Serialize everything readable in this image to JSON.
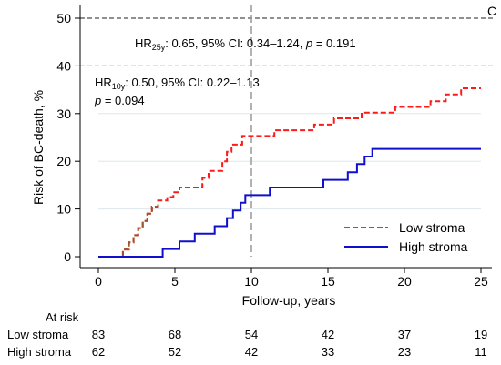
{
  "chart_data": {
    "type": "line",
    "panel_letter": "C",
    "xlabel": "Follow-up, years",
    "ylabel": "Risk of BC-death, %",
    "xlim": [
      0,
      25
    ],
    "ylim": [
      0,
      50
    ],
    "x_ticks": [
      0,
      5,
      10,
      15,
      20,
      25
    ],
    "y_ticks": [
      0,
      10,
      20,
      30,
      40,
      50
    ],
    "grid": "horizontal",
    "reference_line_x": 10,
    "dashed_hlines": [
      40,
      50
    ],
    "legend_position": "bottom-right",
    "annotations": {
      "hr25": {
        "pre": "HR",
        "sub": "25y",
        "post": ": 0.65, 95% CI: 0.34–1.24, ",
        "p_label": "p",
        "p_value": " = 0.191"
      },
      "hr10": {
        "pre": "HR",
        "sub": "10y",
        "post": ": 0.50, 95% CI: 0.22–1.13",
        "p_label": "p",
        "p_value": " = 0.094"
      }
    },
    "series": [
      {
        "name": "Low stroma",
        "color": "#ff1a1a",
        "early_color": "#a0522d",
        "style": "dashed",
        "points": [
          [
            0,
            0
          ],
          [
            1.6,
            0
          ],
          [
            1.6,
            1.5
          ],
          [
            2.0,
            1.5
          ],
          [
            2.0,
            3.0
          ],
          [
            2.3,
            3.0
          ],
          [
            2.3,
            4.5
          ],
          [
            2.6,
            4.5
          ],
          [
            2.6,
            6.0
          ],
          [
            2.9,
            6.0
          ],
          [
            2.9,
            7.5
          ],
          [
            3.2,
            7.5
          ],
          [
            3.2,
            9.0
          ],
          [
            3.5,
            9.0
          ],
          [
            3.5,
            10.5
          ],
          [
            3.9,
            10.5
          ],
          [
            3.9,
            11.8
          ],
          [
            4.5,
            11.8
          ],
          [
            4.5,
            12.5
          ],
          [
            4.9,
            12.5
          ],
          [
            4.9,
            13.5
          ],
          [
            5.3,
            13.5
          ],
          [
            5.3,
            14.5
          ],
          [
            6.8,
            14.5
          ],
          [
            6.8,
            16.5
          ],
          [
            7.2,
            16.5
          ],
          [
            7.2,
            18.0
          ],
          [
            8.1,
            18.0
          ],
          [
            8.1,
            20.0
          ],
          [
            8.4,
            20.0
          ],
          [
            8.4,
            22.0
          ],
          [
            8.7,
            22.0
          ],
          [
            8.7,
            23.5
          ],
          [
            9.4,
            23.5
          ],
          [
            9.4,
            25.3
          ],
          [
            11.5,
            25.3
          ],
          [
            11.5,
            26.5
          ],
          [
            14.1,
            26.5
          ],
          [
            14.1,
            27.7
          ],
          [
            15.4,
            27.7
          ],
          [
            15.4,
            29.0
          ],
          [
            17.2,
            29.0
          ],
          [
            17.2,
            30.2
          ],
          [
            19.4,
            30.2
          ],
          [
            19.4,
            31.4
          ],
          [
            21.7,
            31.4
          ],
          [
            21.7,
            32.6
          ],
          [
            22.7,
            32.6
          ],
          [
            22.7,
            34.0
          ],
          [
            23.7,
            34.0
          ],
          [
            23.7,
            35.3
          ],
          [
            25,
            35.3
          ]
        ]
      },
      {
        "name": "High stroma",
        "color": "#1010cc",
        "style": "solid",
        "points": [
          [
            0,
            0
          ],
          [
            4.2,
            0
          ],
          [
            4.2,
            1.6
          ],
          [
            5.3,
            1.6
          ],
          [
            5.3,
            3.2
          ],
          [
            6.3,
            3.2
          ],
          [
            6.3,
            4.8
          ],
          [
            7.6,
            4.8
          ],
          [
            7.6,
            6.4
          ],
          [
            8.4,
            6.4
          ],
          [
            8.4,
            8.1
          ],
          [
            8.8,
            8.1
          ],
          [
            8.8,
            9.7
          ],
          [
            9.3,
            9.7
          ],
          [
            9.3,
            11.3
          ],
          [
            9.6,
            11.3
          ],
          [
            9.6,
            12.9
          ],
          [
            11.2,
            12.9
          ],
          [
            11.2,
            14.5
          ],
          [
            14.7,
            14.5
          ],
          [
            14.7,
            16.1
          ],
          [
            16.3,
            16.1
          ],
          [
            16.3,
            17.7
          ],
          [
            16.9,
            17.7
          ],
          [
            16.9,
            19.4
          ],
          [
            17.4,
            19.4
          ],
          [
            17.4,
            21.0
          ],
          [
            17.9,
            21.0
          ],
          [
            17.9,
            22.6
          ],
          [
            25,
            22.6
          ]
        ]
      }
    ],
    "at_risk": {
      "title": "At risk",
      "times": [
        0,
        5,
        10,
        15,
        20,
        25
      ],
      "rows": [
        {
          "label": "Low stroma",
          "counts": [
            "83",
            "68",
            "54",
            "42",
            "37",
            "19"
          ]
        },
        {
          "label": "High stroma",
          "counts": [
            "62",
            "52",
            "42",
            "33",
            "23",
            "11"
          ]
        }
      ]
    }
  }
}
